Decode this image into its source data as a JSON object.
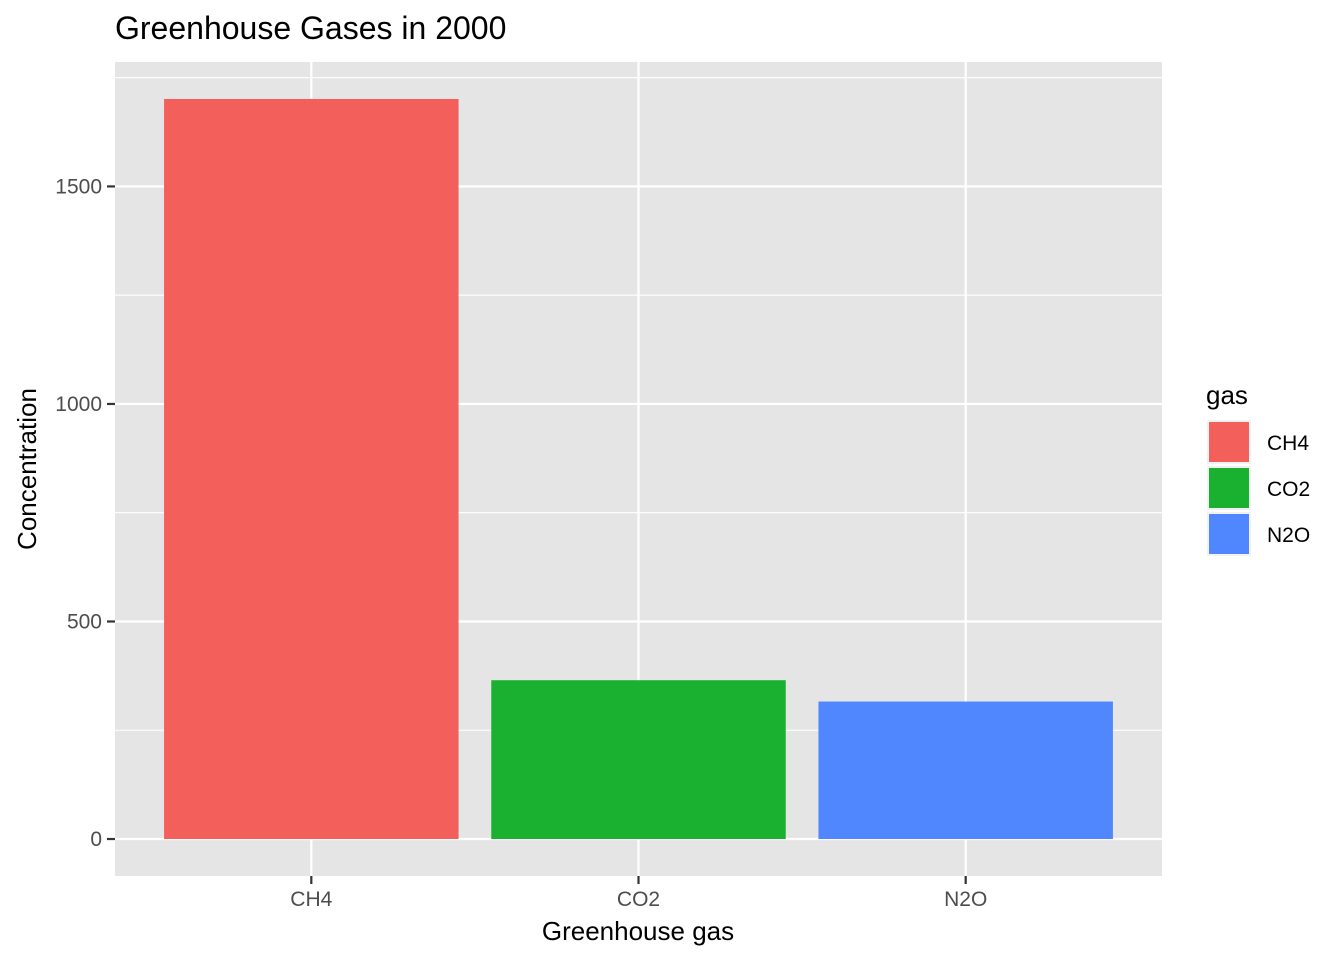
{
  "chart_data": {
    "type": "bar",
    "title": "Greenhouse Gases in 2000",
    "xlabel": "Greenhouse gas",
    "ylabel": "Concentration",
    "categories": [
      "CH4",
      "CO2",
      "N2O"
    ],
    "values": [
      1701,
      365,
      316
    ],
    "colors": [
      "#F35F5A",
      "#19B12F",
      "#5087FF"
    ],
    "ylim": [
      -85,
      1786
    ],
    "yticks": [
      0,
      500,
      1000,
      1500
    ],
    "ytick_labels": [
      "0",
      "500",
      "1000",
      "1500"
    ],
    "grid": true,
    "panel_background": "#E5E5E5",
    "legend": {
      "title": "gas",
      "position": "right",
      "entries": [
        "CH4",
        "CO2",
        "N2O"
      ]
    }
  }
}
